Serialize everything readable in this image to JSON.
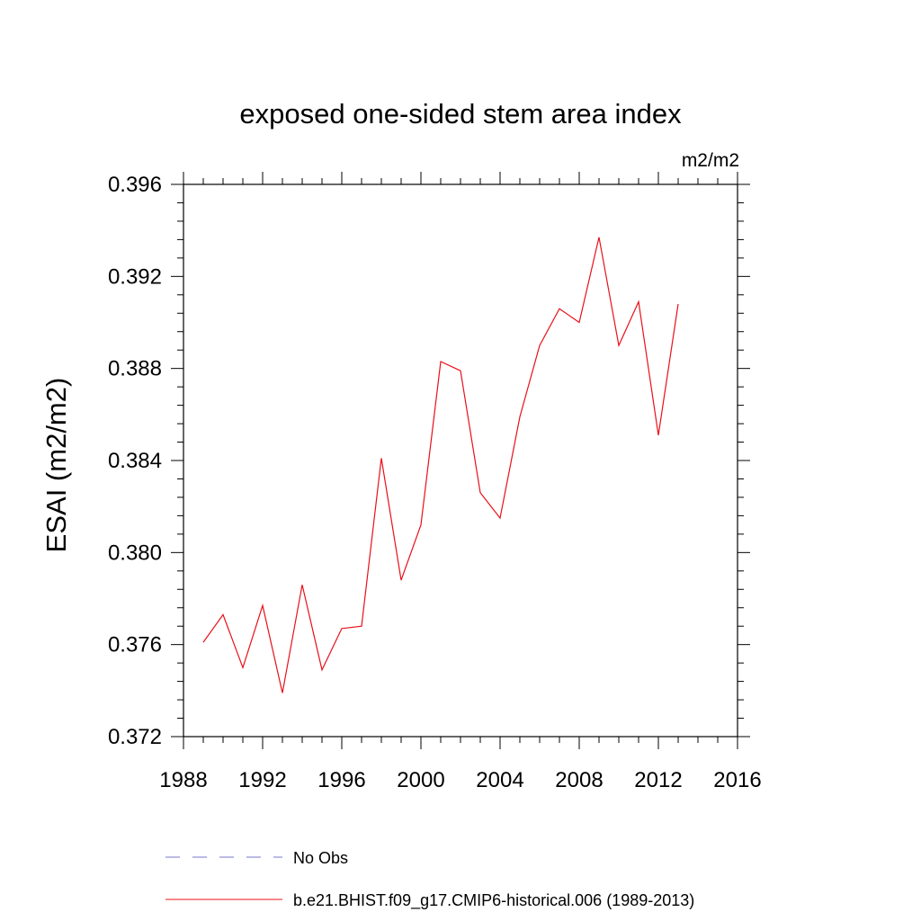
{
  "chart_data": {
    "type": "line",
    "title": "exposed one-sided stem area index",
    "units_label": "m2/m2",
    "ylabel": "ESAI  (m2/m2)",
    "xlabel": "",
    "xlim": [
      1988,
      2016
    ],
    "ylim": [
      0.372,
      0.396
    ],
    "x_ticks": [
      1988,
      1992,
      1996,
      2000,
      2004,
      2008,
      2012,
      2016
    ],
    "y_ticks": [
      0.372,
      0.376,
      0.38,
      0.384,
      0.388,
      0.392,
      0.396
    ],
    "x_tick_labels": [
      "1988",
      "1992",
      "1996",
      "2000",
      "2004",
      "2008",
      "2012",
      "2016"
    ],
    "y_tick_labels": [
      "0.372",
      "0.376",
      "0.380",
      "0.384",
      "0.388",
      "0.392",
      "0.396"
    ],
    "grid": false,
    "legend_position": "bottom",
    "series": [
      {
        "name": "b.e21.BHIST.f09_g17.CMIP6-historical.006 (1989-2013)",
        "color": "#e8101a",
        "style": "solid",
        "x": [
          1989,
          1990,
          1991,
          1992,
          1993,
          1994,
          1995,
          1996,
          1997,
          1998,
          1999,
          2000,
          2001,
          2002,
          2003,
          2004,
          2005,
          2006,
          2007,
          2008,
          2009,
          2010,
          2011,
          2012,
          2013
        ],
        "values": [
          0.3761,
          0.3773,
          0.375,
          0.3777,
          0.3739,
          0.3786,
          0.3749,
          0.3767,
          0.3768,
          0.3841,
          0.3788,
          0.3812,
          0.3883,
          0.3879,
          0.3826,
          0.3815,
          0.3859,
          0.389,
          0.3906,
          0.39,
          0.3937,
          0.389,
          0.3909,
          0.3851,
          0.3908
        ]
      }
    ],
    "legend": [
      {
        "label": "No Obs",
        "color": "#7777cc",
        "style": "dashed"
      },
      {
        "label": "b.e21.BHIST.f09_g17.CMIP6-historical.006 (1989-2013)",
        "color": "#e8101a",
        "style": "solid"
      }
    ]
  }
}
